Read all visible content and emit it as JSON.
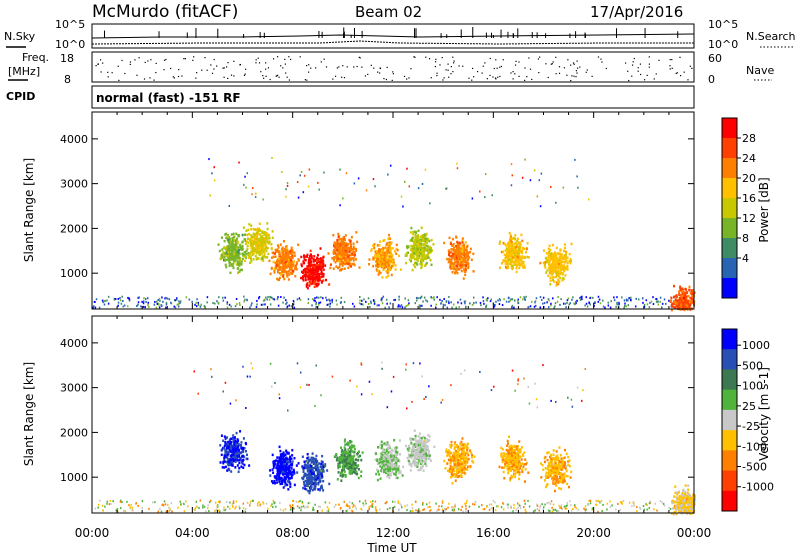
{
  "header": {
    "station": "McMurdo (fitACF)",
    "beam": "Beam 02",
    "date": "17/Apr/2016"
  },
  "noise_panel": {
    "left_label": "N.Sky",
    "right_label": "N.Search",
    "left_ticks": [
      "10^5",
      "10^0"
    ],
    "right_ticks": [
      "10^5",
      "10^0"
    ]
  },
  "freq_panel": {
    "left_label_top": "Freq.",
    "left_label_bottom": "[MHz]",
    "left_ticks": [
      "18",
      "8"
    ],
    "right_label": "Nave",
    "right_ticks": [
      "60",
      "0"
    ]
  },
  "cpid_panel": {
    "label": "CPID",
    "text": "normal (fast) -151 RF"
  },
  "x_axis": {
    "label": "Time UT",
    "ticks": [
      "00:00",
      "04:00",
      "08:00",
      "12:00",
      "16:00",
      "20:00",
      "00:00"
    ]
  },
  "power_colorbar": {
    "label": "Power [dB]",
    "ticks": [
      "28",
      "24",
      "20",
      "16",
      "12",
      "8",
      "4"
    ],
    "colors": [
      "#ff0000",
      "#ff4000",
      "#ff8000",
      "#ffc000",
      "#c8c800",
      "#78b428",
      "#3c8c64",
      "#2864b4",
      "#0000ff"
    ]
  },
  "velocity_colorbar": {
    "label": "Velocity [m s-1]",
    "ticks": [
      "1000",
      "500",
      "100",
      "25",
      "-25",
      "-100",
      "-500",
      "-1000"
    ],
    "colors": [
      "#0000ff",
      "#2850b4",
      "#3c7850",
      "#50b43c",
      "#c8c8c8",
      "#ffc000",
      "#ff8000",
      "#ff4000",
      "#ff0000"
    ]
  },
  "chart_data": [
    {
      "type": "heatmap",
      "title": "Power",
      "xlabel": "Time UT",
      "ylabel": "Slant Range [km]",
      "xlim": [
        0,
        24
      ],
      "ylim": [
        200,
        4600
      ],
      "y_ticks": [
        1000,
        2000,
        3000,
        4000
      ],
      "colorbar_label": "Power [dB]",
      "clim": [
        0,
        30
      ],
      "clusters": [
        {
          "t": 5.6,
          "r": 1500,
          "value": 12
        },
        {
          "t": 6.6,
          "r": 1700,
          "value": 16
        },
        {
          "t": 7.6,
          "r": 1300,
          "value": 22
        },
        {
          "t": 8.8,
          "r": 1100,
          "value": 28
        },
        {
          "t": 10.0,
          "r": 1500,
          "value": 22
        },
        {
          "t": 11.6,
          "r": 1400,
          "value": 20
        },
        {
          "t": 13.0,
          "r": 1600,
          "value": 14
        },
        {
          "t": 14.6,
          "r": 1400,
          "value": 22
        },
        {
          "t": 16.8,
          "r": 1450,
          "value": 18
        },
        {
          "t": 18.5,
          "r": 1250,
          "value": 18
        },
        {
          "t": 23.6,
          "r": 380,
          "value": 24
        }
      ]
    },
    {
      "type": "heatmap",
      "title": "Velocity",
      "xlabel": "Time UT",
      "ylabel": "Slant Range [km]",
      "xlim": [
        0,
        24
      ],
      "ylim": [
        200,
        4600
      ],
      "y_ticks": [
        1000,
        2000,
        3000,
        4000
      ],
      "colorbar_label": "Velocity [m s-1]",
      "clim": [
        -1000,
        1000
      ],
      "clusters": [
        {
          "t": 5.6,
          "r": 1600,
          "value": 800
        },
        {
          "t": 7.6,
          "r": 1200,
          "value": 900
        },
        {
          "t": 8.8,
          "r": 1100,
          "value": 700
        },
        {
          "t": 10.2,
          "r": 1400,
          "value": 300
        },
        {
          "t": 11.8,
          "r": 1400,
          "value": 100
        },
        {
          "t": 13.0,
          "r": 1600,
          "value": 60
        },
        {
          "t": 14.6,
          "r": 1400,
          "value": -300
        },
        {
          "t": 16.8,
          "r": 1400,
          "value": -300
        },
        {
          "t": 18.5,
          "r": 1200,
          "value": -300
        },
        {
          "t": 23.6,
          "r": 400,
          "value": -150
        }
      ]
    }
  ]
}
